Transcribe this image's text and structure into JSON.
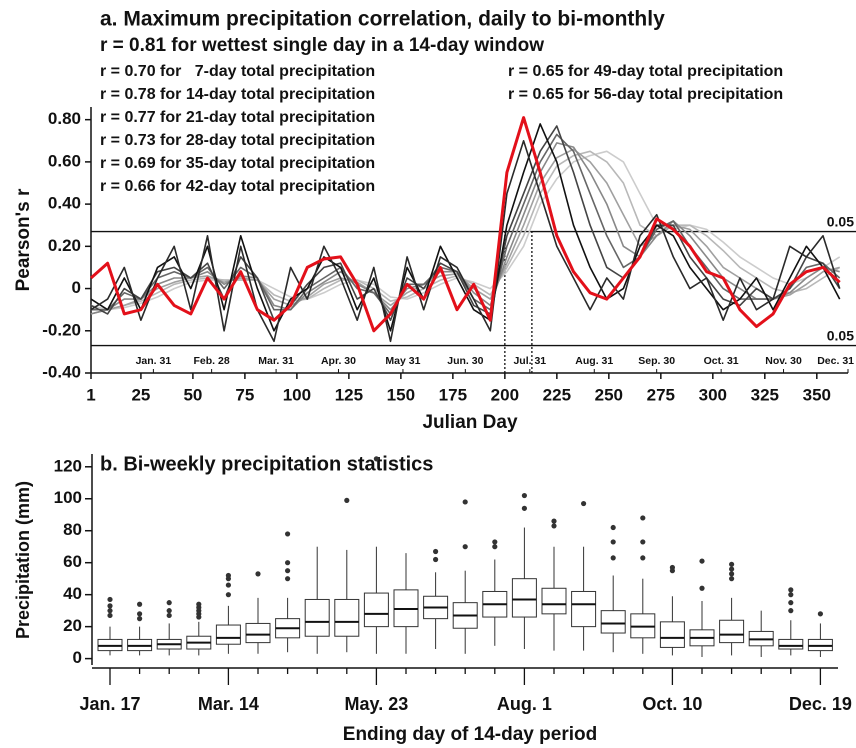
{
  "chart_data": [
    {
      "type": "line",
      "title": "a. Maximum precipitation correlation, daily to bi-monthly",
      "xlabel": "Julian Day",
      "ylabel": "Pearson's r",
      "xlim": [
        1,
        365
      ],
      "ylim": [
        -0.4,
        0.86
      ],
      "xticks": [
        1,
        25,
        50,
        75,
        100,
        125,
        150,
        175,
        200,
        225,
        250,
        275,
        300,
        325,
        350
      ],
      "yticks": [
        {
          "value": 0.8,
          "label": "0.80"
        },
        {
          "value": 0.6,
          "label": "0.60"
        },
        {
          "value": 0.4,
          "label": "0.40"
        },
        {
          "value": 0.2,
          "label": "0.20"
        },
        0,
        {
          "value": -0.2,
          "label": "-0.20"
        },
        {
          "value": -0.4,
          "label": "-0.40"
        }
      ],
      "month_ticks": [
        {
          "value": 31,
          "label": "Jan. 31"
        },
        {
          "value": 59,
          "label": "Feb. 28"
        },
        {
          "value": 90,
          "label": "Mar. 31"
        },
        {
          "value": 120,
          "label": "Apr. 30"
        },
        {
          "value": 151,
          "label": "May 31"
        },
        {
          "value": 181,
          "label": "Jun. 30"
        },
        {
          "value": 212,
          "label": "Jul. 31"
        },
        {
          "value": 243,
          "label": "Aug. 31"
        },
        {
          "value": 273,
          "label": "Sep. 30"
        },
        {
          "value": 304,
          "label": "Oct. 31"
        },
        {
          "value": 334,
          "label": "Nov. 30"
        },
        {
          "value": 365,
          "label": "Dec. 31"
        }
      ],
      "sig_lines": [
        {
          "value": 0.27,
          "label": "0.05"
        },
        {
          "value": -0.27,
          "label": "0.05"
        }
      ],
      "vlines": [
        200,
        213
      ],
      "x": [
        1,
        9,
        17,
        25,
        33,
        41,
        49,
        57,
        65,
        73,
        81,
        89,
        97,
        105,
        113,
        121,
        129,
        137,
        145,
        153,
        161,
        169,
        177,
        185,
        193,
        201,
        209,
        217,
        225,
        233,
        241,
        249,
        257,
        265,
        273,
        281,
        289,
        297,
        305,
        313,
        321,
        329,
        337,
        345,
        353,
        361
      ],
      "series": [
        {
          "name": "r = 0.81 for wettest single day in a 14-day window",
          "color": "#e3101a",
          "values": [
            0.05,
            0.12,
            -0.12,
            -0.1,
            0.02,
            -0.08,
            -0.12,
            0.05,
            -0.05,
            0.08,
            -0.1,
            -0.15,
            -0.08,
            0.1,
            0.14,
            0.15,
            0.02,
            -0.2,
            -0.12,
            0.02,
            -0.05,
            0.1,
            -0.1,
            0.02,
            -0.15,
            0.55,
            0.81,
            0.55,
            0.25,
            0.08,
            -0.02,
            -0.05,
            0.05,
            0.15,
            0.33,
            0.28,
            0.2,
            0.08,
            0.05,
            -0.1,
            -0.18,
            -0.12,
            0.02,
            0.08,
            0.1,
            0.03
          ]
        },
        {
          "name": "r = 0.70 for   7-day total precipitation",
          "color": "#2a2a2a",
          "values": [
            -0.1,
            -0.05,
            0.1,
            -0.15,
            0.05,
            0.2,
            -0.1,
            0.25,
            -0.2,
            0.2,
            -0.1,
            -0.25,
            0.1,
            -0.05,
            0.2,
            0.05,
            -0.15,
            0.1,
            -0.25,
            0.15,
            -0.1,
            0.15,
            0.1,
            -0.05,
            -0.2,
            0.45,
            0.7,
            0.45,
            0.2,
            0.05,
            -0.1,
            0.05,
            -0.05,
            0.25,
            0.35,
            0.15,
            0,
            0.05,
            -0.15,
            0.05,
            -0.1,
            -0.05,
            0.2,
            0.15,
            0.25,
            0
          ]
        },
        {
          "name": "r = 0.78 for 14-day total precipitation",
          "color": "#111111",
          "values": [
            -0.05,
            -0.1,
            0.05,
            -0.1,
            0.1,
            0.15,
            0,
            0.2,
            -0.1,
            0.25,
            0,
            -0.2,
            -0.05,
            0,
            0.15,
            0.1,
            -0.1,
            0.05,
            -0.2,
            0.1,
            -0.05,
            0.2,
            0.05,
            -0.1,
            -0.15,
            0.3,
            0.55,
            0.78,
            0.6,
            0.3,
            0.1,
            -0.05,
            0,
            0.2,
            0.3,
            0.25,
            0.1,
            0,
            -0.1,
            -0.05,
            0.05,
            -0.1,
            0.05,
            0.2,
            0.1,
            -0.05
          ]
        },
        {
          "name": "r = 0.77 for 21-day total precipitation",
          "color": "#444444",
          "values": [
            -0.08,
            -0.12,
            0,
            -0.05,
            0.08,
            0.1,
            0.05,
            0.12,
            -0.05,
            0.15,
            0.05,
            -0.15,
            -0.08,
            0.02,
            0.1,
            0.12,
            -0.05,
            0,
            -0.15,
            0.05,
            0,
            0.12,
            0.08,
            -0.08,
            -0.12,
            0.25,
            0.45,
            0.65,
            0.77,
            0.55,
            0.3,
            0.1,
            0.05,
            0.15,
            0.3,
            0.3,
            0.15,
            0.05,
            -0.05,
            -0.08,
            0,
            -0.05,
            0,
            0.15,
            0.12,
            0
          ]
        },
        {
          "name": "r = 0.73 for 28-day total precipitation",
          "color": "#666666",
          "values": [
            -0.1,
            -0.1,
            -0.02,
            -0.05,
            0.05,
            0.08,
            0.05,
            0.1,
            0,
            0.1,
            0.05,
            -0.1,
            -0.1,
            0,
            0.05,
            0.1,
            0,
            -0.02,
            -0.12,
            0.02,
            0.02,
            0.1,
            0.08,
            -0.05,
            -0.1,
            0.2,
            0.4,
            0.6,
            0.73,
            0.65,
            0.45,
            0.25,
            0.1,
            0.15,
            0.28,
            0.32,
            0.2,
            0.1,
            0,
            -0.05,
            -0.05,
            -0.05,
            0,
            0.1,
            0.12,
            0.05
          ]
        },
        {
          "name": "r = 0.69 for 35-day total precipitation",
          "color": "#888888",
          "values": [
            -0.12,
            -0.1,
            -0.05,
            -0.05,
            0.02,
            0.05,
            0.05,
            0.08,
            0.02,
            0.06,
            0.05,
            -0.08,
            -0.1,
            -0.02,
            0.03,
            0.08,
            0.02,
            -0.02,
            -0.1,
            0,
            0.02,
            0.08,
            0.08,
            -0.02,
            -0.08,
            0.15,
            0.35,
            0.55,
            0.69,
            0.67,
            0.55,
            0.4,
            0.2,
            0.15,
            0.25,
            0.32,
            0.25,
            0.15,
            0.05,
            0,
            -0.05,
            -0.05,
            -0.02,
            0.05,
            0.1,
            0.08
          ]
        },
        {
          "name": "r = 0.66 for 42-day total precipitation",
          "color": "#a0a0a0",
          "values": [
            -0.12,
            -0.1,
            -0.08,
            -0.05,
            0,
            0.03,
            0.05,
            0.06,
            0.03,
            0.05,
            0.04,
            -0.05,
            -0.08,
            -0.04,
            0.02,
            0.05,
            0.03,
            -0.02,
            -0.08,
            -0.02,
            0.02,
            0.06,
            0.07,
            0,
            -0.05,
            0.12,
            0.3,
            0.5,
            0.62,
            0.66,
            0.6,
            0.5,
            0.35,
            0.2,
            0.25,
            0.3,
            0.28,
            0.2,
            0.1,
            0.05,
            0,
            -0.05,
            -0.03,
            0.02,
            0.08,
            0.1
          ]
        },
        {
          "name": "r = 0.65 for 49-day total precipitation",
          "color": "#b8b8b8",
          "values": [
            -0.1,
            -0.1,
            -0.08,
            -0.06,
            -0.02,
            0.02,
            0.04,
            0.05,
            0.04,
            0.04,
            0.04,
            -0.03,
            -0.06,
            -0.05,
            0,
            0.04,
            0.04,
            0,
            -0.06,
            -0.04,
            0,
            0.04,
            0.06,
            0.02,
            -0.03,
            0.1,
            0.25,
            0.45,
            0.58,
            0.63,
            0.65,
            0.6,
            0.5,
            0.3,
            0.25,
            0.3,
            0.3,
            0.25,
            0.18,
            0.1,
            0.05,
            0,
            -0.02,
            0,
            0.05,
            0.1
          ]
        },
        {
          "name": "r = 0.65 for 56-day total precipitation",
          "color": "#cccccc",
          "values": [
            -0.08,
            -0.1,
            -0.09,
            -0.07,
            -0.04,
            0,
            0.03,
            0.04,
            0.04,
            0.04,
            0.04,
            0,
            -0.04,
            -0.05,
            -0.02,
            0.02,
            0.04,
            0.02,
            -0.04,
            -0.05,
            -0.02,
            0.02,
            0.05,
            0.03,
            0,
            0.08,
            0.2,
            0.4,
            0.52,
            0.6,
            0.63,
            0.65,
            0.6,
            0.45,
            0.3,
            0.28,
            0.3,
            0.28,
            0.22,
            0.15,
            0.1,
            0.05,
            0.02,
            0.05,
            0.1,
            0.15
          ]
        }
      ]
    },
    {
      "type": "box",
      "title": "b. Bi-weekly precipitation statistics",
      "xlabel": "Ending day of 14-day period",
      "ylabel": "Precipitation (mm)",
      "ylim": [
        -4,
        128
      ],
      "yticks": [
        0,
        20,
        40,
        60,
        80,
        100,
        120
      ],
      "color": "#333333",
      "categories": [
        "Jan. 17",
        null,
        null,
        null,
        "Mar. 14",
        null,
        null,
        null,
        null,
        "May. 23",
        null,
        null,
        null,
        null,
        "Aug. 1",
        null,
        null,
        null,
        null,
        "Oct. 10",
        null,
        null,
        null,
        null,
        "Dec. 19"
      ],
      "boxes": [
        {
          "low": 2,
          "q1": 5,
          "median": 8,
          "q3": 12,
          "high": 20,
          "outliers": [
            27,
            30,
            33,
            37
          ]
        },
        {
          "low": 2,
          "q1": 5,
          "median": 8,
          "q3": 12,
          "high": 20,
          "outliers": [
            25,
            28,
            34
          ]
        },
        {
          "low": 2,
          "q1": 6,
          "median": 9,
          "q3": 12,
          "high": 22,
          "outliers": [
            27,
            30,
            35
          ]
        },
        {
          "low": 2,
          "q1": 6,
          "median": 10,
          "q3": 14,
          "high": 23,
          "outliers": [
            26,
            28,
            30,
            32,
            34
          ]
        },
        {
          "low": 3,
          "q1": 9,
          "median": 13,
          "q3": 21,
          "high": 33,
          "outliers": [
            40,
            46,
            50,
            52
          ]
        },
        {
          "low": 3,
          "q1": 10,
          "median": 15,
          "q3": 22,
          "high": 38,
          "outliers": [
            53
          ]
        },
        {
          "low": 4,
          "q1": 13,
          "median": 19,
          "q3": 25,
          "high": 38,
          "outliers": [
            50,
            55,
            60,
            78
          ]
        },
        {
          "low": 3,
          "q1": 14,
          "median": 23,
          "q3": 37,
          "high": 70,
          "outliers": []
        },
        {
          "low": 4,
          "q1": 14,
          "median": 23,
          "q3": 37,
          "high": 68,
          "outliers": [
            99
          ]
        },
        {
          "low": 3,
          "q1": 20,
          "median": 28,
          "q3": 41,
          "high": 70,
          "outliers": [
            125
          ]
        },
        {
          "low": 3,
          "q1": 20,
          "median": 31,
          "q3": 43,
          "high": 66,
          "outliers": []
        },
        {
          "low": 6,
          "q1": 25,
          "median": 32,
          "q3": 39,
          "high": 54,
          "outliers": [
            62,
            67
          ]
        },
        {
          "low": 3,
          "q1": 19,
          "median": 27,
          "q3": 35,
          "high": 55,
          "outliers": [
            70,
            98
          ]
        },
        {
          "low": 8,
          "q1": 26,
          "median": 34,
          "q3": 42,
          "high": 62,
          "outliers": [
            70,
            73
          ]
        },
        {
          "low": 6,
          "q1": 26,
          "median": 37,
          "q3": 50,
          "high": 82,
          "outliers": [
            94,
            102
          ]
        },
        {
          "low": 5,
          "q1": 28,
          "median": 34,
          "q3": 44,
          "high": 70,
          "outliers": [
            83,
            86
          ]
        },
        {
          "low": 5,
          "q1": 20,
          "median": 34,
          "q3": 42,
          "high": 70,
          "outliers": [
            97
          ]
        },
        {
          "low": 4,
          "q1": 16,
          "median": 22,
          "q3": 30,
          "high": 52,
          "outliers": [
            63,
            73,
            82
          ]
        },
        {
          "low": 3,
          "q1": 13,
          "median": 20,
          "q3": 28,
          "high": 50,
          "outliers": [
            63,
            73,
            88
          ]
        },
        {
          "low": 2,
          "q1": 7,
          "median": 13,
          "q3": 23,
          "high": 39,
          "outliers": [
            55,
            57
          ]
        },
        {
          "low": 1,
          "q1": 8,
          "median": 13,
          "q3": 18,
          "high": 36,
          "outliers": [
            44,
            61
          ]
        },
        {
          "low": 2,
          "q1": 10,
          "median": 15,
          "q3": 24,
          "high": 38,
          "outliers": [
            50,
            53,
            56,
            59
          ]
        },
        {
          "low": 1,
          "q1": 8,
          "median": 12,
          "q3": 17,
          "high": 30,
          "outliers": []
        },
        {
          "low": 2,
          "q1": 6,
          "median": 8,
          "q3": 12,
          "high": 24,
          "outliers": [
            30,
            35,
            40,
            43
          ]
        },
        {
          "low": 1,
          "q1": 5,
          "median": 8,
          "q3": 12,
          "high": 22,
          "outliers": [
            28
          ]
        }
      ]
    }
  ]
}
